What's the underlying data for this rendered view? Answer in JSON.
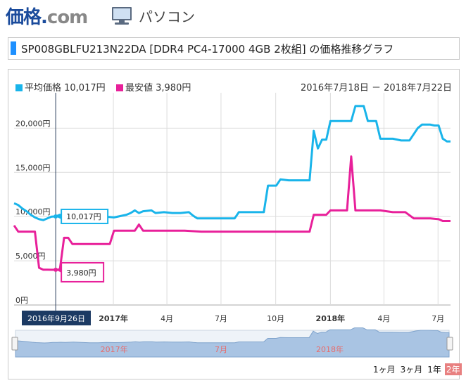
{
  "header": {
    "logo_main": "価格",
    "logo_dot": ".",
    "logo_com": "com",
    "category_icon": "pc-monitor-icon",
    "category_label": "パソコン"
  },
  "title": "SP008GBLFU213N22DA [DDR4 PC4-17000 4GB 2枚組] の価格推移グラフ",
  "legend": {
    "avg_label": "平均価格 10,017円",
    "min_label": "最安値 3,980円",
    "avg_color": "#19b4ea",
    "min_color": "#e8209a"
  },
  "date_range": "2016年7月18日 － 2018年7月22日",
  "tooltip": {
    "date": "2016年9月26日",
    "avg_value": "10,017円",
    "min_value": "3,980円"
  },
  "navigator_labels": [
    "2017年",
    "7月",
    "2018年"
  ],
  "range_buttons": [
    {
      "label": "1ヶ月",
      "active": false
    },
    {
      "label": "3ヶ月",
      "active": false
    },
    {
      "label": "1年",
      "active": false
    },
    {
      "label": "2年",
      "active": true
    }
  ],
  "chart_data": {
    "type": "line",
    "x_tick_labels": [
      "2017年",
      "4月",
      "7月",
      "10月",
      "2018年",
      "4月",
      "7月"
    ],
    "y_tick_labels": [
      "0円",
      "5,000円",
      "10,000円",
      "15,000円",
      "20,000円"
    ],
    "ylim": [
      0,
      24000
    ],
    "xlim": [
      "2016-07-18",
      "2018-07-22"
    ],
    "grid": true,
    "series": [
      {
        "name": "平均価格",
        "color": "#19b4ea",
        "points": [
          [
            "2016-07-18",
            11500
          ],
          [
            "2016-07-25",
            11300
          ],
          [
            "2016-08-01",
            10900
          ],
          [
            "2016-08-08",
            10600
          ],
          [
            "2016-08-15",
            10200
          ],
          [
            "2016-08-22",
            9900
          ],
          [
            "2016-08-29",
            9700
          ],
          [
            "2016-09-05",
            9600
          ],
          [
            "2016-09-12",
            9800
          ],
          [
            "2016-09-19",
            10000
          ],
          [
            "2016-09-26",
            10017
          ],
          [
            "2016-10-03",
            10200
          ],
          [
            "2016-10-10",
            10000
          ],
          [
            "2016-10-24",
            10300
          ],
          [
            "2016-11-07",
            10000
          ],
          [
            "2016-11-21",
            9700
          ],
          [
            "2016-12-05",
            9700
          ],
          [
            "2016-12-19",
            10000
          ],
          [
            "2017-01-02",
            9900
          ],
          [
            "2017-01-16",
            10100
          ],
          [
            "2017-01-23",
            10200
          ],
          [
            "2017-01-30",
            10400
          ],
          [
            "2017-02-06",
            10700
          ],
          [
            "2017-02-13",
            10400
          ],
          [
            "2017-02-20",
            10600
          ],
          [
            "2017-03-06",
            10700
          ],
          [
            "2017-03-13",
            10400
          ],
          [
            "2017-03-27",
            10500
          ],
          [
            "2017-04-10",
            10400
          ],
          [
            "2017-04-24",
            10400
          ],
          [
            "2017-05-08",
            10500
          ],
          [
            "2017-05-15",
            10100
          ],
          [
            "2017-05-22",
            9800
          ],
          [
            "2017-06-19",
            9800
          ],
          [
            "2017-07-17",
            9800
          ],
          [
            "2017-07-24",
            9800
          ],
          [
            "2017-07-31",
            10500
          ],
          [
            "2017-08-21",
            10500
          ],
          [
            "2017-09-04",
            10500
          ],
          [
            "2017-09-11",
            10500
          ],
          [
            "2017-09-18",
            13500
          ],
          [
            "2017-10-02",
            13500
          ],
          [
            "2017-10-09",
            14200
          ],
          [
            "2017-10-23",
            14100
          ],
          [
            "2017-11-06",
            14100
          ],
          [
            "2017-11-20",
            14100
          ],
          [
            "2017-11-27",
            14100
          ],
          [
            "2017-12-04",
            19700
          ],
          [
            "2017-12-11",
            17700
          ],
          [
            "2017-12-18",
            18700
          ],
          [
            "2017-12-25",
            18700
          ],
          [
            "2018-01-01",
            20800
          ],
          [
            "2018-01-22",
            20800
          ],
          [
            "2018-02-05",
            20800
          ],
          [
            "2018-02-12",
            22500
          ],
          [
            "2018-02-26",
            22500
          ],
          [
            "2018-03-05",
            20800
          ],
          [
            "2018-03-19",
            20800
          ],
          [
            "2018-03-26",
            18800
          ],
          [
            "2018-04-16",
            18800
          ],
          [
            "2018-04-30",
            18600
          ],
          [
            "2018-05-14",
            18600
          ],
          [
            "2018-05-28",
            20000
          ],
          [
            "2018-06-04",
            20400
          ],
          [
            "2018-06-18",
            20400
          ],
          [
            "2018-06-25",
            20300
          ],
          [
            "2018-07-02",
            20300
          ],
          [
            "2018-07-09",
            18800
          ],
          [
            "2018-07-16",
            18500
          ],
          [
            "2018-07-22",
            18500
          ]
        ]
      },
      {
        "name": "最安値",
        "color": "#e8209a",
        "points": [
          [
            "2016-07-18",
            9000
          ],
          [
            "2016-07-25",
            8300
          ],
          [
            "2016-08-01",
            8300
          ],
          [
            "2016-08-08",
            8300
          ],
          [
            "2016-08-15",
            8300
          ],
          [
            "2016-08-22",
            8300
          ],
          [
            "2016-08-29",
            4200
          ],
          [
            "2016-09-05",
            4000
          ],
          [
            "2016-09-12",
            4000
          ],
          [
            "2016-09-19",
            3980
          ],
          [
            "2016-09-26",
            3980
          ],
          [
            "2016-10-03",
            3980
          ],
          [
            "2016-10-10",
            7600
          ],
          [
            "2016-10-17",
            7600
          ],
          [
            "2016-10-24",
            6900
          ],
          [
            "2016-11-07",
            6900
          ],
          [
            "2016-11-21",
            6900
          ],
          [
            "2016-12-05",
            6900
          ],
          [
            "2016-12-19",
            6900
          ],
          [
            "2016-12-26",
            6900
          ],
          [
            "2017-01-02",
            8400
          ],
          [
            "2017-01-16",
            8400
          ],
          [
            "2017-01-30",
            8400
          ],
          [
            "2017-02-06",
            8400
          ],
          [
            "2017-02-13",
            9100
          ],
          [
            "2017-02-20",
            8400
          ],
          [
            "2017-03-06",
            8400
          ],
          [
            "2017-04-03",
            8400
          ],
          [
            "2017-05-01",
            8400
          ],
          [
            "2017-05-29",
            8300
          ],
          [
            "2017-07-03",
            8300
          ],
          [
            "2017-08-07",
            8300
          ],
          [
            "2017-09-04",
            8300
          ],
          [
            "2017-10-02",
            8300
          ],
          [
            "2017-11-06",
            8300
          ],
          [
            "2017-11-27",
            8300
          ],
          [
            "2017-12-04",
            10200
          ],
          [
            "2017-12-25",
            10200
          ],
          [
            "2018-01-01",
            10700
          ],
          [
            "2018-01-22",
            10700
          ],
          [
            "2018-01-29",
            10700
          ],
          [
            "2018-02-05",
            16800
          ],
          [
            "2018-02-12",
            10700
          ],
          [
            "2018-03-05",
            10700
          ],
          [
            "2018-03-26",
            10700
          ],
          [
            "2018-04-16",
            10500
          ],
          [
            "2018-05-07",
            10500
          ],
          [
            "2018-05-21",
            9800
          ],
          [
            "2018-06-04",
            9800
          ],
          [
            "2018-06-18",
            9800
          ],
          [
            "2018-07-02",
            9700
          ],
          [
            "2018-07-09",
            9500
          ],
          [
            "2018-07-22",
            9500
          ]
        ]
      }
    ]
  }
}
